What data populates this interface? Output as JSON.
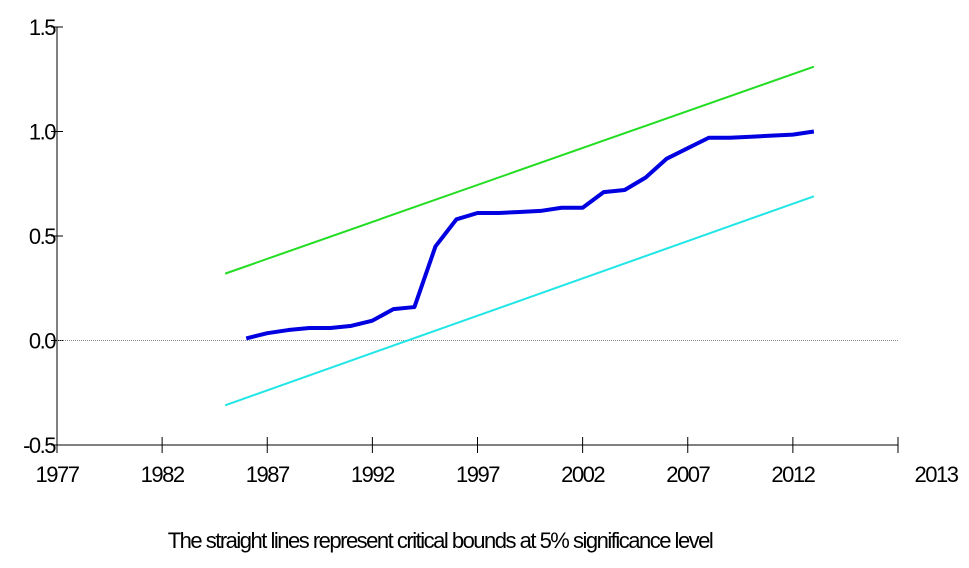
{
  "chart_data": {
    "type": "line",
    "caption": "The straight lines represent critical bounds at 5% significance level",
    "xlim": [
      1977,
      2017
    ],
    "xticks": [
      1977,
      1982,
      1987,
      1992,
      1997,
      2002,
      2007,
      2012
    ],
    "x_axis_end_label": "2013",
    "ylim": [
      -0.5,
      1.5
    ],
    "yticks": [
      {
        "value": -0.5,
        "label": "-0.5"
      },
      {
        "value": 0,
        "label": "0.0"
      },
      {
        "value": 0.5,
        "label": "0.5"
      },
      {
        "value": 1,
        "label": "1.0"
      },
      {
        "value": 1.5,
        "label": "1.5"
      }
    ],
    "zero_line": true,
    "series": [
      {
        "color": "#0000e0",
        "width": 4,
        "x": [
          1986,
          1987,
          1988,
          1989,
          1990,
          1991,
          1992,
          1993,
          1994,
          1995,
          1996,
          1997,
          1998,
          1999,
          2000,
          2001,
          2002,
          2003,
          2004,
          2005,
          2006,
          2007,
          2008,
          2009,
          2010,
          2011,
          2012,
          2013
        ],
        "values": [
          0.01,
          0.035,
          0.05,
          0.06,
          0.06,
          0.07,
          0.095,
          0.15,
          0.16,
          0.45,
          0.58,
          0.61,
          0.61,
          0.615,
          0.62,
          0.635,
          0.635,
          0.71,
          0.72,
          0.78,
          0.87,
          0.92,
          0.97,
          0.97,
          0.975,
          0.98,
          0.985,
          1.0
        ]
      },
      {
        "color": "#22dd22",
        "width": 2,
        "x": [
          1985,
          2013
        ],
        "values": [
          0.32,
          1.31
        ]
      },
      {
        "color": "#22e5e5",
        "width": 2,
        "x": [
          1985,
          2013
        ],
        "values": [
          -0.31,
          0.69
        ]
      }
    ]
  }
}
